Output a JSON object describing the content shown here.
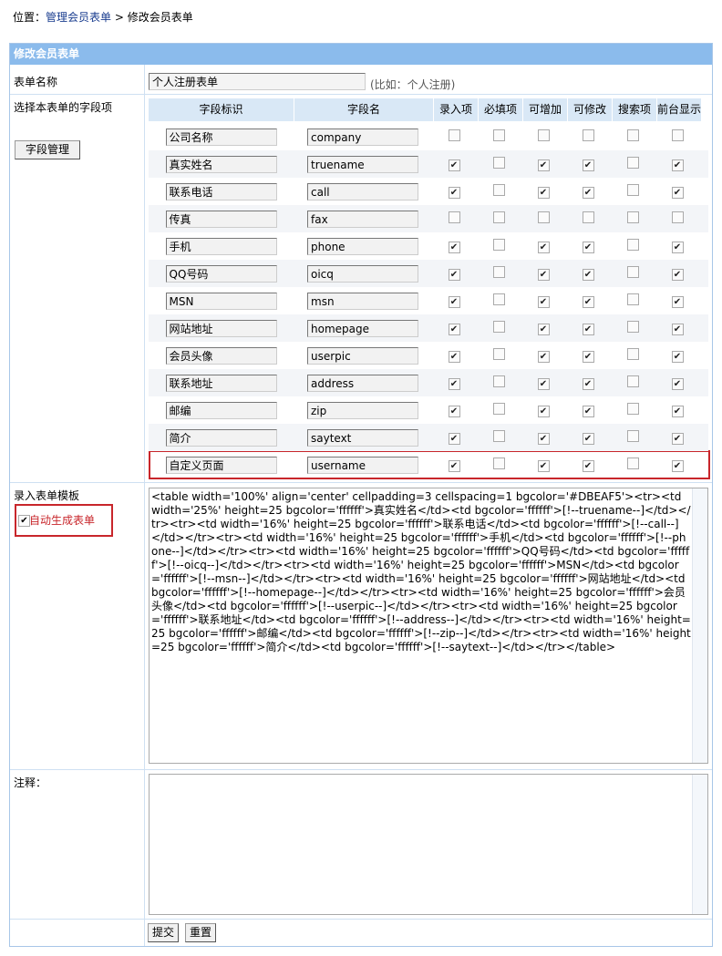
{
  "breadcrumb": {
    "prefix": "位置：",
    "link": "管理会员表单",
    "sep": " > ",
    "current": "修改会员表单"
  },
  "panel_title": "修改会员表单",
  "form_name": {
    "label": "表单名称",
    "value": "个人注册表单",
    "hint": "(比如：个人注册)"
  },
  "fields_section": {
    "label": "选择本表单的字段项",
    "manage_button": "字段管理",
    "columns": [
      "字段标识",
      "字段名",
      "录入项",
      "必填项",
      "可增加",
      "可修改",
      "搜索项",
      "前台显示"
    ],
    "rows": [
      {
        "title": "公司名称",
        "name": "company",
        "checks": [
          false,
          false,
          false,
          false,
          false,
          false
        ]
      },
      {
        "title": "真实姓名",
        "name": "truename",
        "checks": [
          true,
          false,
          true,
          true,
          false,
          true
        ]
      },
      {
        "title": "联系电话",
        "name": "call",
        "checks": [
          true,
          false,
          true,
          true,
          false,
          true
        ]
      },
      {
        "title": "传真",
        "name": "fax",
        "checks": [
          false,
          false,
          false,
          false,
          false,
          false
        ]
      },
      {
        "title": "手机",
        "name": "phone",
        "checks": [
          true,
          false,
          true,
          true,
          false,
          true
        ]
      },
      {
        "title": "QQ号码",
        "name": "oicq",
        "checks": [
          true,
          false,
          true,
          true,
          false,
          true
        ]
      },
      {
        "title": "MSN",
        "name": "msn",
        "checks": [
          true,
          false,
          true,
          true,
          false,
          true
        ]
      },
      {
        "title": "网站地址",
        "name": "homepage",
        "checks": [
          true,
          false,
          true,
          true,
          false,
          true
        ]
      },
      {
        "title": "会员头像",
        "name": "userpic",
        "checks": [
          true,
          false,
          true,
          true,
          false,
          true
        ]
      },
      {
        "title": "联系地址",
        "name": "address",
        "checks": [
          true,
          false,
          true,
          true,
          false,
          true
        ]
      },
      {
        "title": "邮编",
        "name": "zip",
        "checks": [
          true,
          false,
          true,
          true,
          false,
          true
        ]
      },
      {
        "title": "简介",
        "name": "saytext",
        "checks": [
          true,
          false,
          true,
          true,
          false,
          true
        ]
      },
      {
        "title": "自定义页面",
        "name": "username",
        "checks": [
          true,
          false,
          true,
          true,
          false,
          true
        ]
      }
    ]
  },
  "template": {
    "label": "录入表单模板",
    "auto_label": "自动生成表单",
    "auto_checked": true,
    "value": "<table width='100%' align='center' cellpadding=3 cellspacing=1 bgcolor='#DBEAF5'><tr><td width='25%' height=25 bgcolor='ffffff'>真实姓名</td><td bgcolor='ffffff'>[!--truename--]</td></tr><tr><td width='16%' height=25 bgcolor='ffffff'>联系电话</td><td bgcolor='ffffff'>[!--call--]</td></tr><tr><td width='16%' height=25 bgcolor='ffffff'>手机</td><td bgcolor='ffffff'>[!--phone--]</td></tr><tr><td width='16%' height=25 bgcolor='ffffff'>QQ号码</td><td bgcolor='ffffff'>[!--oicq--]</td></tr><tr><td width='16%' height=25 bgcolor='ffffff'>MSN</td><td bgcolor='ffffff'>[!--msn--]</td></tr><tr><td width='16%' height=25 bgcolor='ffffff'>网站地址</td><td bgcolor='ffffff'>[!--homepage--]</td></tr><tr><td width='16%' height=25 bgcolor='ffffff'>会员头像</td><td bgcolor='ffffff'>[!--userpic--]</td></tr><tr><td width='16%' height=25 bgcolor='ffffff'>联系地址</td><td bgcolor='ffffff'>[!--address--]</td></tr><tr><td width='16%' height=25 bgcolor='ffffff'>邮编</td><td bgcolor='ffffff'>[!--zip--]</td></tr><tr><td width='16%' height=25 bgcolor='ffffff'>简介</td><td bgcolor='ffffff'>[!--saytext--]</td></tr></table>"
  },
  "notes": {
    "label": "注释：",
    "value": ""
  },
  "buttons": {
    "submit": "提交",
    "reset": "重置"
  },
  "colors": {
    "header": "#8bbbec",
    "highlight": "#c8262b",
    "link": "#1a3d8f"
  }
}
